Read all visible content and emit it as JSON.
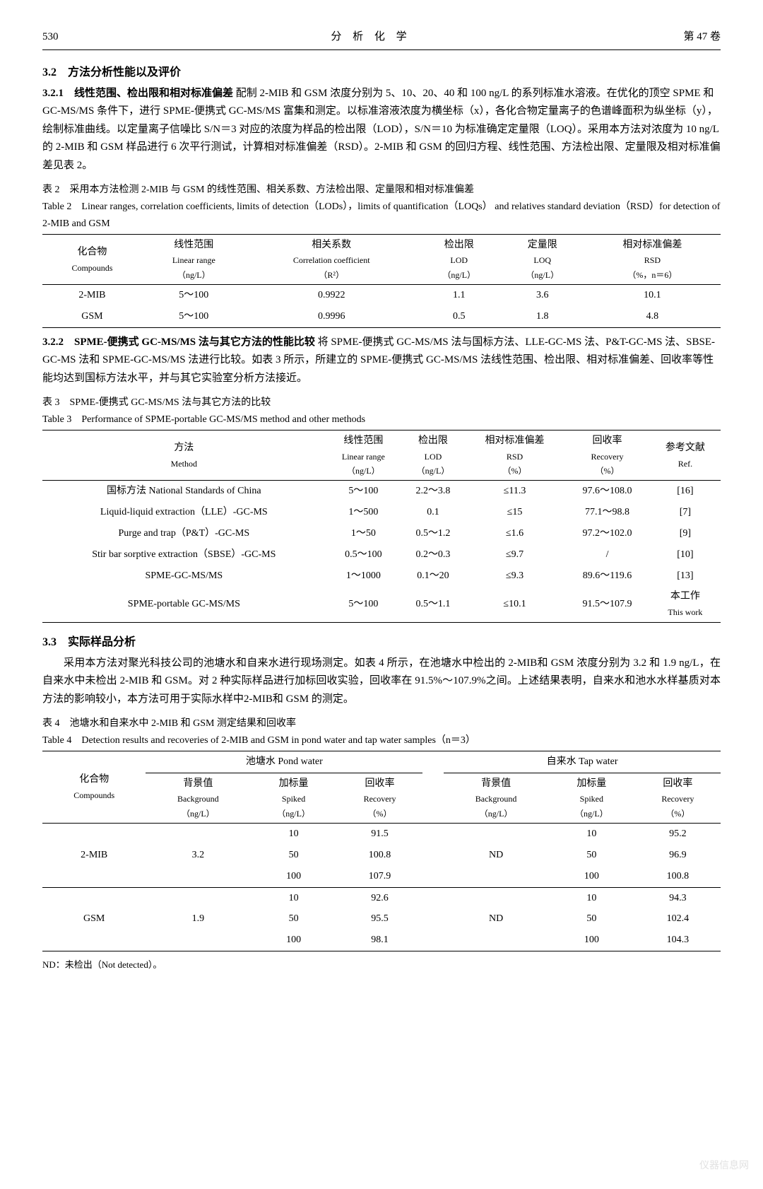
{
  "header": {
    "page_num": "530",
    "journal": "分 析 化 学",
    "volume": "第 47 卷"
  },
  "sec_321_title": "3.2　方法分析性能以及评价",
  "sec_3211_title": "3.2.1　线性范围、检出限和相对标准偏差",
  "sec_3211_para": "配制 2-MIB 和 GSM 浓度分别为 5、10、20、40 和 100 ng/L 的系列标准水溶液。在优化的顶空 SPME 和 GC-MS/MS 条件下，进行 SPME-便携式 GC-MS/MS 富集和测定。以标准溶液浓度为横坐标（x），各化合物定量离子的色谱峰面积为纵坐标（y），绘制标准曲线。以定量离子信噪比 S/N＝3 对应的浓度为样品的检出限（LOD），S/N＝10 为标准确定定量限（LOQ）。采用本方法对浓度为 10 ng/L 的 2-MIB 和 GSM 样品进行 6 次平行测试，计算相对标准偏差（RSD）。2-MIB 和 GSM 的回归方程、线性范围、方法检出限、定量限及相对标准偏差见表 2。",
  "table2": {
    "title_cn": "表 2　采用本方法检测 2-MIB 与 GSM 的线性范围、相关系数、方法检出限、定量限和相对标准偏差",
    "title_en": "Table 2　Linear ranges, correlation coefficients, limits of detection（LODs），limits of quantification（LOQs） and relatives standard deviation（RSD）for detection of 2-MIB and GSM",
    "columns": [
      {
        "cn": "化合物",
        "en": "Compounds",
        "sub": ""
      },
      {
        "cn": "线性范围",
        "en": "Linear range",
        "sub": "（ng/L）"
      },
      {
        "cn": "相关系数",
        "en": "Correlation coefficient",
        "sub": "（R²）"
      },
      {
        "cn": "检出限",
        "en": "LOD",
        "sub": "（ng/L）"
      },
      {
        "cn": "定量限",
        "en": "LOQ",
        "sub": "（ng/L）"
      },
      {
        "cn": "相对标准偏差",
        "en": "RSD",
        "sub": "（%，n＝6）"
      }
    ],
    "rows": [
      [
        "2-MIB",
        "5～100",
        "0.9922",
        "1.1",
        "3.6",
        "10.1"
      ],
      [
        "GSM",
        "5～100",
        "0.9996",
        "0.5",
        "1.8",
        "4.8"
      ]
    ]
  },
  "sec_322_title": "3.2.2　SPME-便携式 GC-MS/MS 法与其它方法的性能比较",
  "sec_322_para": "将 SPME-便携式 GC-MS/MS 法与国标方法、LLE-GC-MS 法、P&T-GC-MS 法、SBSE-GC-MS 法和 SPME-GC-MS/MS 法进行比较。如表 3 所示，所建立的 SPME-便携式 GC-MS/MS 法线性范围、检出限、相对标准偏差、回收率等性能均达到国标方法水平，并与其它实验室分析方法接近。",
  "table3": {
    "title_cn": "表 3　SPME-便携式 GC-MS/MS 法与其它方法的比较",
    "title_en": "Table 3　Performance of SPME-portable GC-MS/MS method and other methods",
    "columns": [
      {
        "cn": "方法",
        "en": "Method",
        "sub": ""
      },
      {
        "cn": "线性范围",
        "en": "Linear range",
        "sub": "（ng/L）"
      },
      {
        "cn": "检出限",
        "en": "LOD",
        "sub": "（ng/L）"
      },
      {
        "cn": "相对标准偏差",
        "en": "RSD",
        "sub": "（%）"
      },
      {
        "cn": "回收率",
        "en": "Recovery",
        "sub": "（%）"
      },
      {
        "cn": "参考文献",
        "en": "Ref.",
        "sub": ""
      }
    ],
    "rows": [
      [
        "国标方法 National Standards of China",
        "5～100",
        "2.2～3.8",
        "≤11.3",
        "97.6～108.0",
        "[16]"
      ],
      [
        "Liquid-liquid extraction（LLE）-GC-MS",
        "1～500",
        "0.1",
        "≤15",
        "77.1～98.8",
        "[7]"
      ],
      [
        "Purge and trap（P&T）-GC-MS",
        "1～50",
        "0.5～1.2",
        "≤1.6",
        "97.2～102.0",
        "[9]"
      ],
      [
        "Stir bar sorptive extraction（SBSE）-GC-MS",
        "0.5～100",
        "0.2～0.3",
        "≤9.7",
        "/",
        "[10]"
      ],
      [
        "SPME-GC-MS/MS",
        "1～1000",
        "0.1～20",
        "≤9.3",
        "89.6～119.6",
        "[13]"
      ],
      [
        "SPME-portable GC-MS/MS",
        "5～100",
        "0.5～1.1",
        "≤10.1",
        "91.5～107.9",
        "本工作\nThis work"
      ]
    ]
  },
  "sec_33_title": "3.3　实际样品分析",
  "sec_33_para": "采用本方法对聚光科技公司的池塘水和自来水进行现场测定。如表 4 所示，在池塘水中检出的 2-MIB和 GSM 浓度分别为 3.2 和 1.9 ng/L，在自来水中未检出 2-MIB 和 GSM。对 2 种实际样品进行加标回收实验，回收率在 91.5%～107.9%之间。上述结果表明，自来水和池水水样基质对本方法的影响较小，本方法可用于实际水样中2-MIB和 GSM 的测定。",
  "table4": {
    "title_cn": "表 4　池塘水和自来水中 2-MIB 和 GSM 测定结果和回收率",
    "title_en": "Table 4　Detection results and recoveries of 2-MIB and GSM in pond water and tap water samples（n＝3）",
    "group_labels": {
      "pond": "池塘水 Pond water",
      "tap": "自来水 Tap water"
    },
    "sub_columns": [
      {
        "cn": "化合物",
        "en": "Compounds",
        "sub": ""
      },
      {
        "cn": "背景值",
        "en": "Background",
        "sub": "（ng/L）"
      },
      {
        "cn": "加标量",
        "en": "Spiked",
        "sub": "（ng/L）"
      },
      {
        "cn": "回收率",
        "en": "Recovery",
        "sub": "（%）"
      },
      {
        "cn": "背景值",
        "en": "Background",
        "sub": "（ng/L）"
      },
      {
        "cn": "加标量",
        "en": "Spiked",
        "sub": "（ng/L）"
      },
      {
        "cn": "回收率",
        "en": "Recovery",
        "sub": "（%）"
      }
    ],
    "blocks": [
      {
        "compound": "2-MIB",
        "pond_bg": "3.2",
        "tap_bg": "ND",
        "rows": [
          [
            "10",
            "91.5",
            "10",
            "95.2"
          ],
          [
            "50",
            "100.8",
            "50",
            "96.9"
          ],
          [
            "100",
            "107.9",
            "100",
            "100.8"
          ]
        ]
      },
      {
        "compound": "GSM",
        "pond_bg": "1.9",
        "tap_bg": "ND",
        "rows": [
          [
            "10",
            "92.6",
            "10",
            "94.3"
          ],
          [
            "50",
            "95.5",
            "50",
            "102.4"
          ],
          [
            "100",
            "98.1",
            "100",
            "104.3"
          ]
        ]
      }
    ],
    "footnote": "ND：未检出（Not detected）。"
  },
  "watermark": "仪器信息网"
}
